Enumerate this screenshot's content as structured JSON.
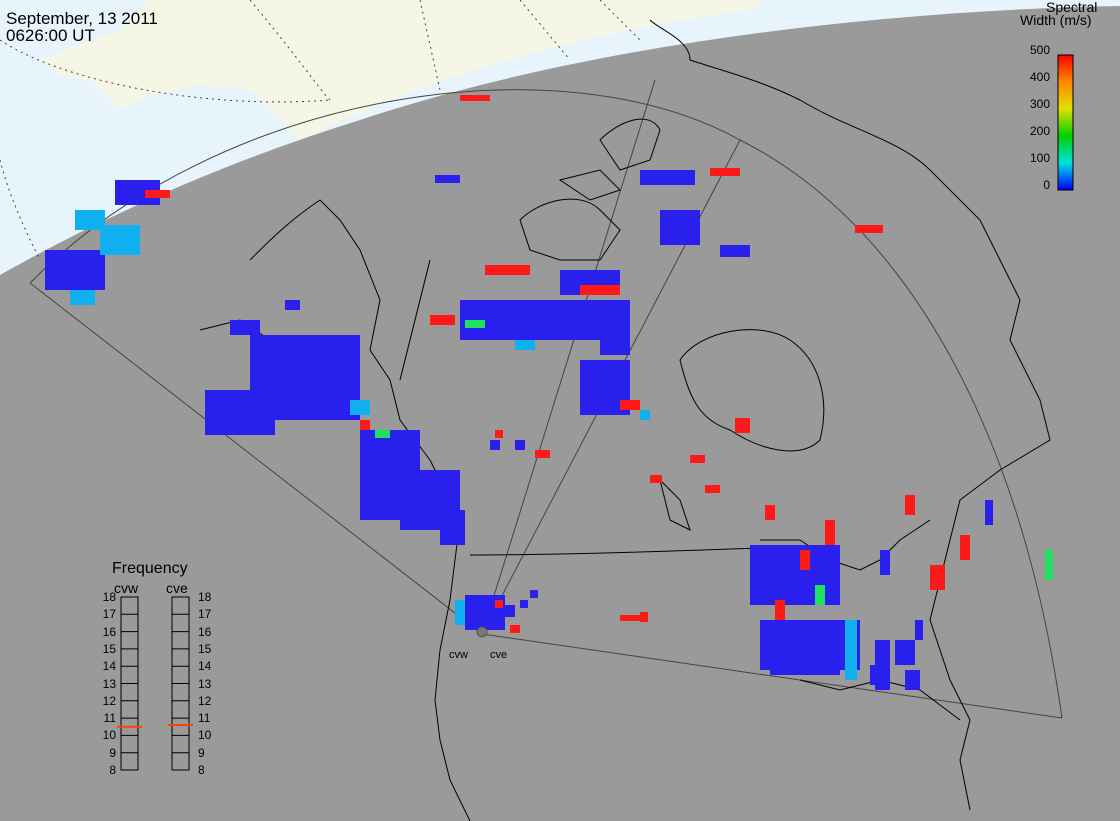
{
  "header": {
    "date": "September, 13 2011",
    "time": "0626:00 UT"
  },
  "colorbar": {
    "title_line1": "Spectral",
    "title_line2": "Width (m/s)",
    "ticks": [
      "500",
      "400",
      "300",
      "200",
      "100",
      "0"
    ],
    "colors": [
      "#ff0000",
      "#ff8800",
      "#e0e000",
      "#00d000",
      "#00e0e0",
      "#0000ff"
    ]
  },
  "frequency_panel": {
    "title": "Frequency",
    "radars": [
      "cvw",
      "cve"
    ],
    "ticks": [
      "18",
      "17",
      "16",
      "15",
      "14",
      "13",
      "12",
      "11",
      "10",
      "9",
      "8"
    ],
    "cvw_value_mhz": 10.5,
    "cve_value_mhz": 10.6,
    "indicator_color": "#ff4000"
  },
  "sites": {
    "west": "cvw",
    "east": "cve"
  },
  "colors": {
    "background_night": "#9a9a9a",
    "daylight": "#e8f4fb",
    "land_day": "#f6f6e6",
    "coastline": "#000000",
    "low_width": "#2a20ee",
    "high_width": "#ff1a1a"
  }
}
